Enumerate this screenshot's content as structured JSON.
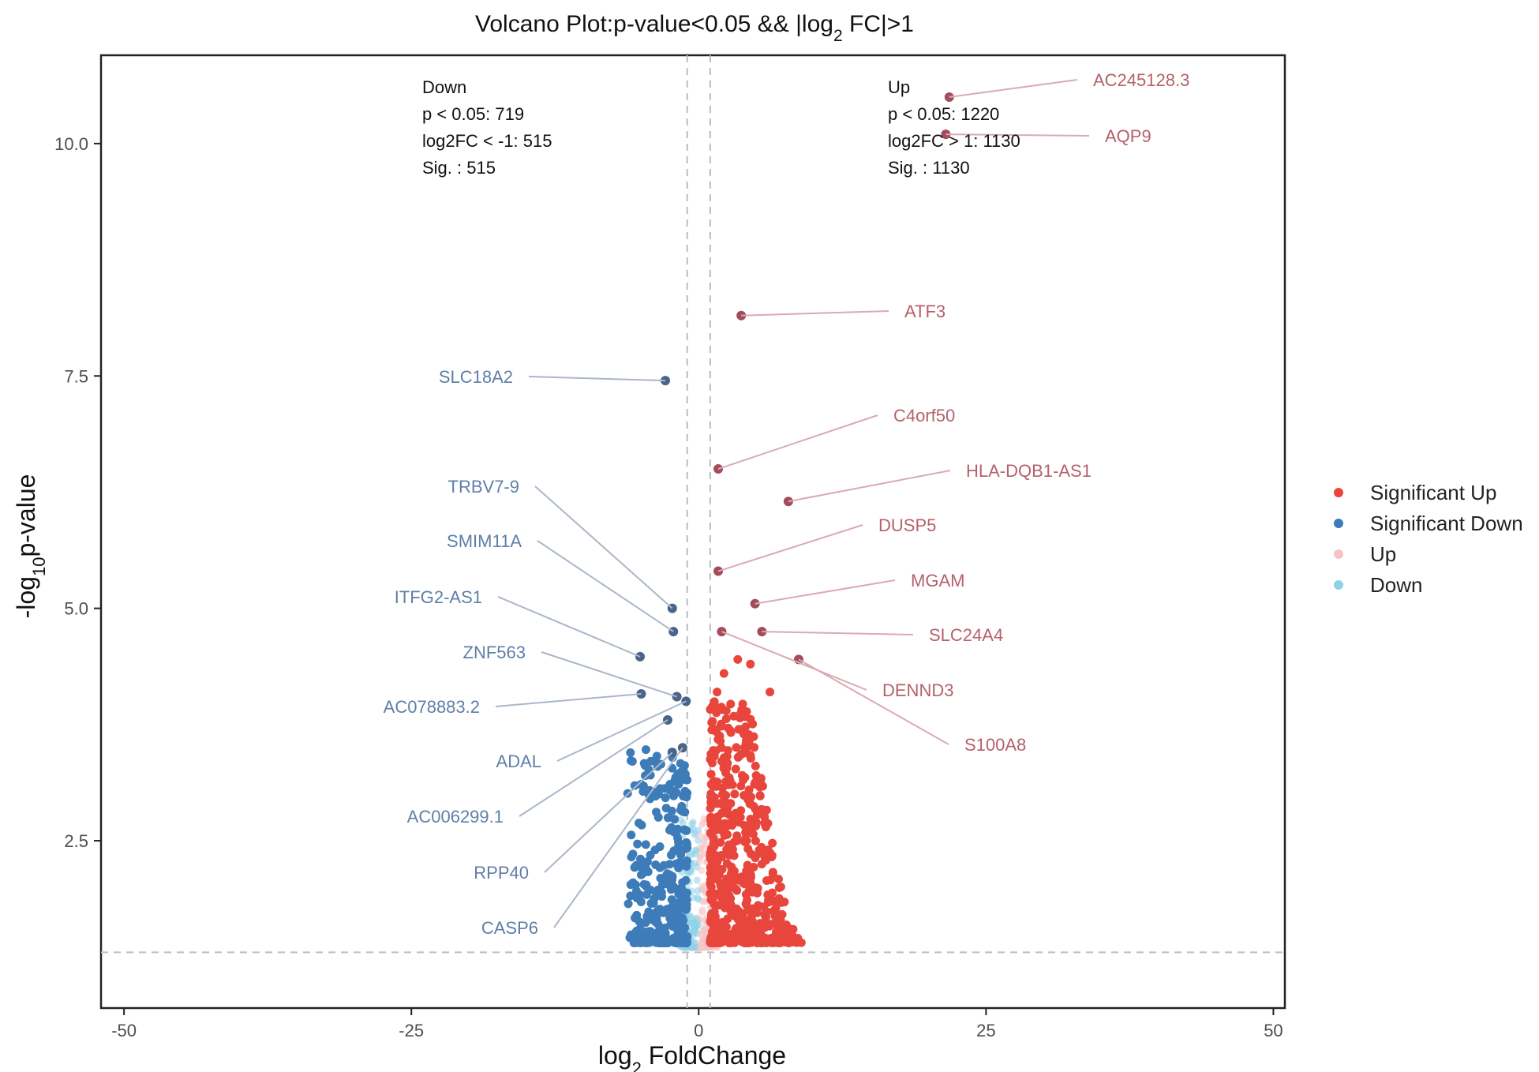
{
  "chart_data": {
    "type": "scatter",
    "title_main": "Volcano Plot:p-value<0.05 && |log",
    "title_sub": "2",
    "title_tail": " FC|>1",
    "xlabel_main": "log",
    "xlabel_sub": "2",
    "xlabel_tail": " FoldChange",
    "ylabel_main": "-log",
    "ylabel_sub": "10",
    "ylabel_tail": "p-value",
    "xlim": [
      -52,
      51
    ],
    "ylim": [
      0.7,
      10.95
    ],
    "x_ticks": [
      -50,
      -25,
      0,
      25,
      50
    ],
    "x_tick_labels": [
      "-50",
      "-25",
      "0",
      "25",
      "50"
    ],
    "y_ticks": [
      2.5,
      5.0,
      7.5,
      10.0
    ],
    "y_tick_labels": [
      "2.5",
      "5.0",
      "7.5",
      "10.0"
    ],
    "thresholds": {
      "x": [
        -1,
        1
      ],
      "y": 1.3
    },
    "grid": false,
    "legend_position": "right",
    "legend": [
      {
        "name": "Significant Up",
        "color": "#e8463c"
      },
      {
        "name": "Significant Down",
        "color": "#3d7cb8"
      },
      {
        "name": "Up",
        "color": "#f6c4c4"
      },
      {
        "name": "Down",
        "color": "#8fd1ea"
      }
    ],
    "annotations": {
      "down": [
        "Down",
        "p < 0.05: 719",
        "log2FC < -1: 515",
        "Sig. : 515"
      ],
      "up": [
        "Up",
        "p < 0.05: 1220",
        "log2FC > 1: 1130",
        "Sig. : 1130"
      ]
    },
    "labeled_genes": [
      {
        "name": "AC245128.3",
        "x": 21.8,
        "y": 10.5,
        "group": "up"
      },
      {
        "name": "AQP9",
        "x": 21.5,
        "y": 10.1,
        "group": "up"
      },
      {
        "name": "ATF3",
        "x": 3.7,
        "y": 8.15,
        "group": "up"
      },
      {
        "name": "C4orf50",
        "x": 1.7,
        "y": 6.5,
        "group": "up"
      },
      {
        "name": "HLA-DQB1-AS1",
        "x": 7.8,
        "y": 6.15,
        "group": "up"
      },
      {
        "name": "DUSP5",
        "x": 1.7,
        "y": 5.4,
        "group": "up"
      },
      {
        "name": "MGAM",
        "x": 4.9,
        "y": 5.05,
        "group": "up"
      },
      {
        "name": "SLC24A4",
        "x": 5.5,
        "y": 4.75,
        "group": "up"
      },
      {
        "name": "DENND3",
        "x": 2.0,
        "y": 4.75,
        "group": "up"
      },
      {
        "name": "S100A8",
        "x": 8.7,
        "y": 4.45,
        "group": "up"
      },
      {
        "name": "SLC18A2",
        "x": -2.9,
        "y": 7.45,
        "group": "down"
      },
      {
        "name": "TRBV7-9",
        "x": -2.3,
        "y": 5.0,
        "group": "down"
      },
      {
        "name": "SMIM11A",
        "x": -2.2,
        "y": 4.75,
        "group": "down"
      },
      {
        "name": "ITFG2-AS1",
        "x": -5.1,
        "y": 4.48,
        "group": "down"
      },
      {
        "name": "ZNF563",
        "x": -1.9,
        "y": 4.05,
        "group": "down"
      },
      {
        "name": "AC078883.2",
        "x": -5.0,
        "y": 4.08,
        "group": "down"
      },
      {
        "name": "ADAL",
        "x": -1.1,
        "y": 4.0,
        "group": "down"
      },
      {
        "name": "AC006299.1",
        "x": -2.7,
        "y": 3.8,
        "group": "down"
      },
      {
        "name": "RPP40",
        "x": -2.3,
        "y": 3.45,
        "group": "down"
      },
      {
        "name": "CASP6",
        "x": -1.4,
        "y": 3.5,
        "group": "down"
      }
    ]
  }
}
